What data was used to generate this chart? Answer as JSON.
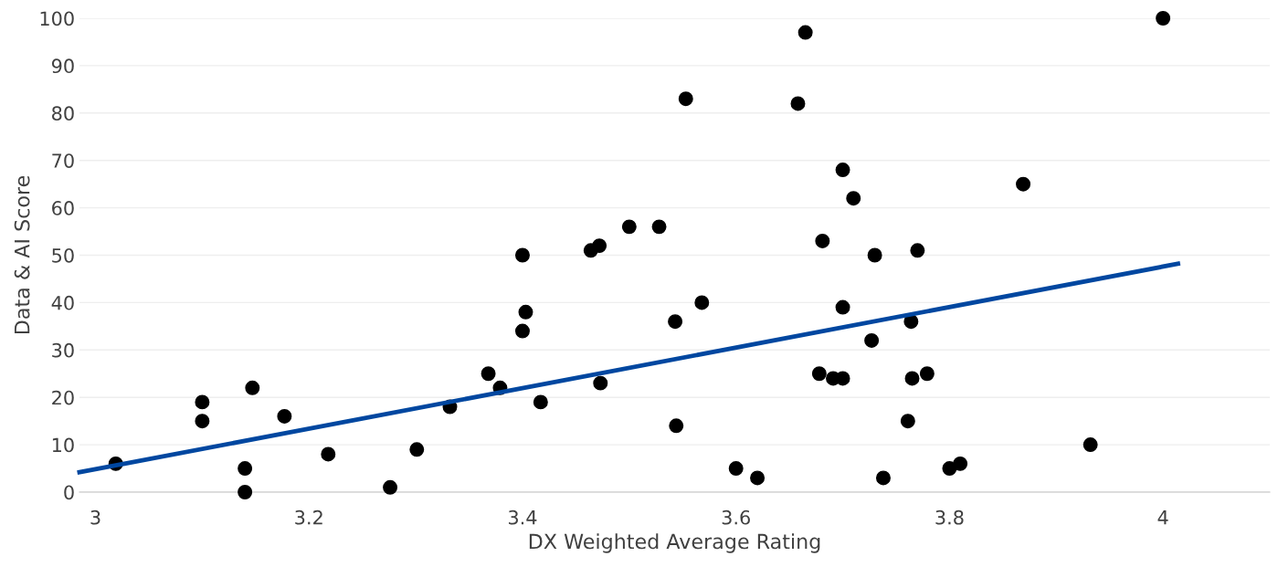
{
  "chart_data": {
    "type": "scatter",
    "xlabel": "DX Weighted Average Rating",
    "ylabel": "Data & AI Score",
    "xlim": [
      2.985,
      4.1
    ],
    "xticks": [
      3,
      3.2,
      3.4,
      3.6,
      3.8,
      4
    ],
    "ylim": [
      0,
      100
    ],
    "yticks": [
      0,
      10,
      20,
      30,
      40,
      50,
      60,
      70,
      80,
      90,
      100
    ],
    "grid": "y",
    "series": [
      {
        "marker": "circle",
        "color": "#000000",
        "x": [
          3.019,
          3.1,
          3.1,
          3.147,
          3.177,
          3.14,
          3.14,
          3.218,
          3.276,
          3.301,
          3.332,
          3.368,
          3.379,
          3.4,
          3.4,
          3.403,
          3.417,
          3.464,
          3.472,
          3.473,
          3.5,
          3.528,
          3.543,
          3.544,
          3.553,
          3.568,
          3.6,
          3.62,
          3.658,
          3.665,
          3.678,
          3.681,
          3.691,
          3.7,
          3.7,
          3.7,
          3.71,
          3.727,
          3.73,
          3.738,
          3.761,
          3.764,
          3.765,
          3.77,
          3.779,
          3.8,
          3.81,
          3.869,
          3.932,
          4.0
        ],
        "values": [
          6,
          19,
          15,
          22,
          16,
          5,
          0,
          8,
          1,
          9,
          18,
          25,
          22,
          34,
          50,
          38,
          19,
          51,
          52,
          23,
          56,
          56,
          36,
          14,
          83,
          40,
          5,
          3,
          82,
          97,
          25,
          53,
          24,
          24,
          39,
          68,
          62,
          32,
          50,
          3,
          15,
          36,
          24,
          51,
          25,
          5,
          6,
          65,
          10,
          100
        ]
      },
      {
        "type": "line",
        "color": "#0047a0",
        "x": [
          2.985,
          4.014
        ],
        "values": [
          4.2,
          48.2
        ]
      }
    ]
  }
}
